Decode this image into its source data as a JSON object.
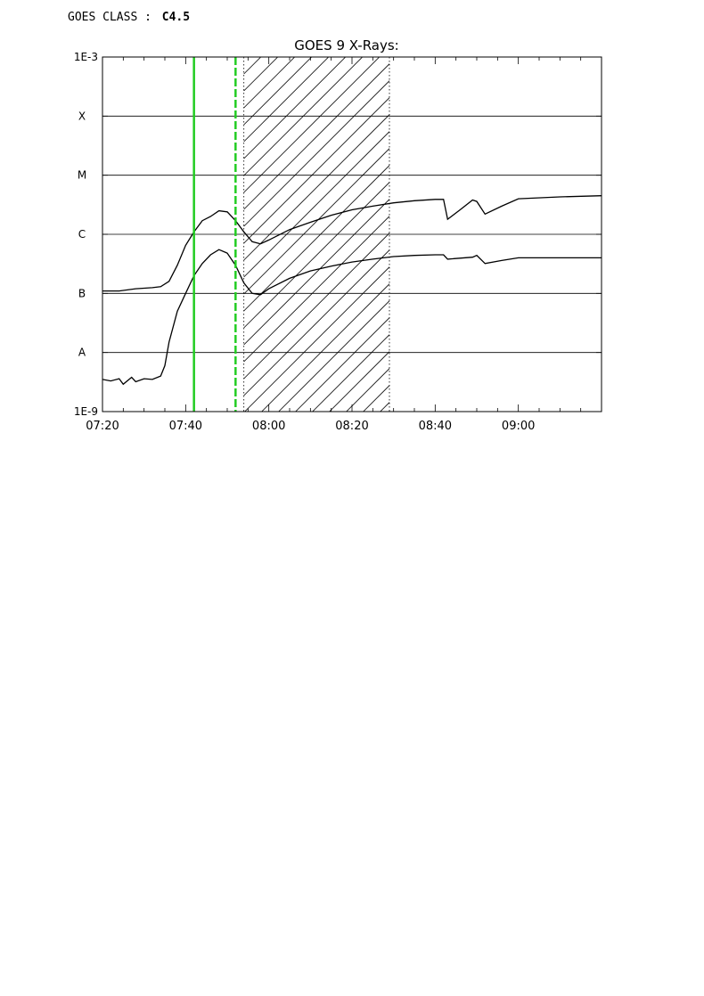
{
  "header": {
    "class_label": "GOES CLASS :",
    "class_value": "C4.5"
  },
  "chart_data": {
    "type": "line",
    "title": "GOES 9 X-Rays:",
    "xlabel": "",
    "ylabel": "",
    "y_scale": "log",
    "ylim": [
      1e-09,
      0.001
    ],
    "y_tick_labels": [
      {
        "value": 0.001,
        "label": "1E-3"
      },
      {
        "value": 0.0001,
        "label": "X"
      },
      {
        "value": 1e-05,
        "label": "M"
      },
      {
        "value": 1e-06,
        "label": "C"
      },
      {
        "value": 1e-07,
        "label": "B"
      },
      {
        "value": 1e-08,
        "label": "A"
      },
      {
        "value": 1e-09,
        "label": "1E-9"
      }
    ],
    "horizontal_grid_at": [
      0.0001,
      1e-05,
      1e-06,
      1e-07,
      1e-08
    ],
    "xlim": [
      "07:20",
      "09:20"
    ],
    "x_tick_labels": [
      "07:20",
      "07:40",
      "08:00",
      "08:20",
      "08:40",
      "09:00"
    ],
    "green_vertical_lines": [
      {
        "time": "07:42",
        "style": "solid",
        "color": "#22cc22"
      },
      {
        "time": "07:52",
        "style": "dashed",
        "color": "#22cc22"
      }
    ],
    "hatched_region": {
      "start": "07:54",
      "end": "08:29"
    },
    "colors": {
      "series": "#000000",
      "markers": "#22cc22",
      "grid": "#000000"
    },
    "series": [
      {
        "band": "long",
        "points": [
          [
            "07:20",
            1.1e-07
          ],
          [
            "07:24",
            1.1e-07
          ],
          [
            "07:28",
            1.2e-07
          ],
          [
            "07:32",
            1.25e-07
          ],
          [
            "07:34",
            1.3e-07
          ],
          [
            "07:36",
            1.6e-07
          ],
          [
            "07:38",
            3e-07
          ],
          [
            "07:40",
            6.5e-07
          ],
          [
            "07:42",
            1.1e-06
          ],
          [
            "07:44",
            1.7e-06
          ],
          [
            "07:46",
            2e-06
          ],
          [
            "07:48",
            2.5e-06
          ],
          [
            "07:50",
            2.4e-06
          ],
          [
            "07:52",
            1.7e-06
          ],
          [
            "07:54",
            1.1e-06
          ],
          [
            "07:56",
            7.5e-07
          ],
          [
            "07:58",
            6.9e-07
          ],
          [
            "08:00",
            8e-07
          ],
          [
            "08:05",
            1.2e-06
          ],
          [
            "08:10",
            1.6e-06
          ],
          [
            "08:15",
            2.1e-06
          ],
          [
            "08:20",
            2.6e-06
          ],
          [
            "08:25",
            3e-06
          ],
          [
            "08:30",
            3.4e-06
          ],
          [
            "08:35",
            3.7e-06
          ],
          [
            "08:40",
            3.9e-06
          ],
          [
            "08:42",
            3.9e-06
          ],
          [
            "08:43",
            1.8e-06
          ],
          [
            "08:46",
            2.6e-06
          ],
          [
            "08:49",
            3.8e-06
          ],
          [
            "08:50",
            3.6e-06
          ],
          [
            "08:52",
            2.2e-06
          ],
          [
            "08:56",
            3e-06
          ],
          [
            "09:00",
            4e-06
          ],
          [
            "09:10",
            4.3e-06
          ],
          [
            "09:20",
            4.5e-06
          ]
        ]
      },
      {
        "band": "short",
        "points": [
          [
            "07:20",
            3.5e-09
          ],
          [
            "07:22",
            3.3e-09
          ],
          [
            "07:24",
            3.6e-09
          ],
          [
            "07:25",
            2.9e-09
          ],
          [
            "07:27",
            3.8e-09
          ],
          [
            "07:28",
            3.2e-09
          ],
          [
            "07:30",
            3.6e-09
          ],
          [
            "07:32",
            3.5e-09
          ],
          [
            "07:34",
            4e-09
          ],
          [
            "07:35",
            6e-09
          ],
          [
            "07:36",
            1.5e-08
          ],
          [
            "07:38",
            5e-08
          ],
          [
            "07:40",
            1e-07
          ],
          [
            "07:42",
            2e-07
          ],
          [
            "07:44",
            3.2e-07
          ],
          [
            "07:46",
            4.5e-07
          ],
          [
            "07:48",
            5.5e-07
          ],
          [
            "07:50",
            4.8e-07
          ],
          [
            "07:52",
            3e-07
          ],
          [
            "07:54",
            1.5e-07
          ],
          [
            "07:56",
            1e-07
          ],
          [
            "07:58",
            9.5e-08
          ],
          [
            "08:00",
            1.2e-07
          ],
          [
            "08:05",
            1.8e-07
          ],
          [
            "08:10",
            2.4e-07
          ],
          [
            "08:15",
            2.9e-07
          ],
          [
            "08:20",
            3.4e-07
          ],
          [
            "08:25",
            3.8e-07
          ],
          [
            "08:30",
            4.2e-07
          ],
          [
            "08:35",
            4.4e-07
          ],
          [
            "08:40",
            4.5e-07
          ],
          [
            "08:42",
            4.5e-07
          ],
          [
            "08:43",
            3.8e-07
          ],
          [
            "08:49",
            4.1e-07
          ],
          [
            "08:50",
            4.4e-07
          ],
          [
            "08:52",
            3.2e-07
          ],
          [
            "08:56",
            3.6e-07
          ],
          [
            "09:00",
            4e-07
          ],
          [
            "09:10",
            4e-07
          ],
          [
            "09:20",
            4e-07
          ]
        ]
      }
    ]
  }
}
